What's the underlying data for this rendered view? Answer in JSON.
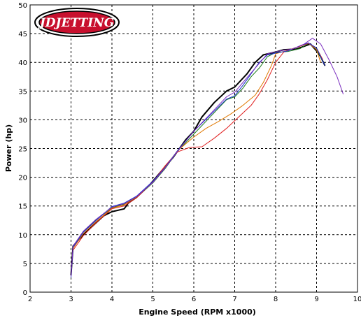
{
  "logo": {
    "text": "JDJETTING"
  },
  "chart_data": {
    "type": "line",
    "title": "",
    "xlabel": "Engine Speed (RPM x1000)",
    "ylabel": "Power (hp)",
    "xlim": [
      2,
      10
    ],
    "ylim": [
      0,
      50
    ],
    "xticks": [
      2,
      3,
      4,
      5,
      6,
      7,
      8,
      9,
      10
    ],
    "yticks": [
      0,
      5,
      10,
      15,
      20,
      25,
      30,
      35,
      40,
      45,
      50
    ],
    "grid": true,
    "legend": "none",
    "series": [
      {
        "color": "#000000",
        "width": 2,
        "points": [
          [
            3.0,
            3.0
          ],
          [
            3.05,
            8
          ],
          [
            3.3,
            10
          ],
          [
            3.6,
            12
          ],
          [
            3.8,
            13.3
          ],
          [
            4.0,
            14
          ],
          [
            4.3,
            14.5
          ],
          [
            4.4,
            15.5
          ],
          [
            4.6,
            16.5
          ],
          [
            4.9,
            18.5
          ],
          [
            5.2,
            21
          ],
          [
            5.5,
            23.5
          ],
          [
            5.8,
            26.5
          ],
          [
            6.0,
            28
          ],
          [
            6.2,
            30.5
          ],
          [
            6.5,
            33
          ],
          [
            6.8,
            35
          ],
          [
            7.0,
            35.7
          ],
          [
            7.3,
            38
          ],
          [
            7.5,
            40
          ],
          [
            7.7,
            41.3
          ],
          [
            8.0,
            41.8
          ],
          [
            8.2,
            42.2
          ],
          [
            8.5,
            42.3
          ],
          [
            8.7,
            42.8
          ],
          [
            8.85,
            43.2
          ],
          [
            9.0,
            42
          ],
          [
            9.1,
            41
          ],
          [
            9.2,
            39.5
          ]
        ]
      },
      {
        "color": "#1a7a1a",
        "width": 1,
        "points": [
          [
            3.05,
            7.8
          ],
          [
            3.3,
            10.5
          ],
          [
            3.6,
            12.5
          ],
          [
            4.0,
            14.7
          ],
          [
            4.3,
            15.3
          ],
          [
            4.6,
            16.5
          ],
          [
            5.0,
            19
          ],
          [
            5.3,
            21.5
          ],
          [
            5.6,
            24.5
          ],
          [
            6.0,
            27.5
          ],
          [
            6.4,
            30.5
          ],
          [
            6.8,
            33.5
          ],
          [
            7.0,
            34
          ],
          [
            7.2,
            35.5
          ],
          [
            7.4,
            37.5
          ],
          [
            7.6,
            39
          ],
          [
            7.8,
            41
          ],
          [
            8.0,
            41.7
          ],
          [
            8.3,
            41.9
          ],
          [
            8.6,
            42.4
          ],
          [
            8.8,
            43.3
          ],
          [
            9.0,
            42.3
          ],
          [
            9.15,
            40.2
          ]
        ]
      },
      {
        "color": "#e07800",
        "width": 1,
        "points": [
          [
            3.05,
            7.6
          ],
          [
            3.3,
            10.2
          ],
          [
            3.6,
            12.2
          ],
          [
            4.0,
            14.6
          ],
          [
            4.3,
            15.2
          ],
          [
            4.6,
            16.6
          ],
          [
            5.0,
            19.3
          ],
          [
            5.3,
            21.8
          ],
          [
            5.6,
            24.6
          ],
          [
            6.0,
            27
          ],
          [
            6.3,
            28.5
          ],
          [
            6.6,
            29.7
          ],
          [
            6.9,
            31
          ],
          [
            7.2,
            32.5
          ],
          [
            7.5,
            34.3
          ],
          [
            7.7,
            36.5
          ],
          [
            7.9,
            39.5
          ],
          [
            8.0,
            41.5
          ],
          [
            8.3,
            42.1
          ],
          [
            8.6,
            42.8
          ],
          [
            8.8,
            43.4
          ],
          [
            9.0,
            42.2
          ],
          [
            9.1,
            40
          ]
        ]
      },
      {
        "color": "#e02020",
        "width": 1,
        "points": [
          [
            3.05,
            7.3
          ],
          [
            3.3,
            9.8
          ],
          [
            3.6,
            12
          ],
          [
            4.0,
            14.5
          ],
          [
            4.3,
            15
          ],
          [
            4.6,
            16.4
          ],
          [
            5.0,
            19.2
          ],
          [
            5.3,
            22
          ],
          [
            5.6,
            24.4
          ],
          [
            5.9,
            25.2
          ],
          [
            6.2,
            25.3
          ],
          [
            6.5,
            26.8
          ],
          [
            6.8,
            28.5
          ],
          [
            7.1,
            30.5
          ],
          [
            7.4,
            32.5
          ],
          [
            7.6,
            34.5
          ],
          [
            7.8,
            37
          ],
          [
            8.0,
            40
          ],
          [
            8.2,
            41.8
          ],
          [
            8.5,
            42.6
          ],
          [
            8.8,
            43.3
          ],
          [
            9.0,
            42.5
          ],
          [
            9.15,
            40.5
          ]
        ]
      },
      {
        "color": "#1a30d0",
        "width": 1,
        "points": [
          [
            3.0,
            2.6
          ],
          [
            3.05,
            7.8
          ],
          [
            3.3,
            10.4
          ],
          [
            3.6,
            12.4
          ],
          [
            4.0,
            14.9
          ],
          [
            4.3,
            15.5
          ],
          [
            4.6,
            16.7
          ],
          [
            5.0,
            19.3
          ],
          [
            5.3,
            21.7
          ],
          [
            5.6,
            24.6
          ],
          [
            6.0,
            28
          ],
          [
            6.4,
            30.8
          ],
          [
            6.8,
            33.6
          ],
          [
            7.0,
            34.2
          ],
          [
            7.2,
            36
          ],
          [
            7.4,
            38
          ],
          [
            7.6,
            40
          ],
          [
            7.8,
            41.3
          ],
          [
            8.0,
            41.6
          ],
          [
            8.3,
            42
          ],
          [
            8.6,
            42.9
          ],
          [
            8.8,
            43.4
          ],
          [
            9.0,
            42.5
          ],
          [
            9.2,
            39.5
          ]
        ]
      },
      {
        "color": "#7b2fbf",
        "width": 1,
        "points": [
          [
            3.0,
            2.8
          ],
          [
            3.05,
            8
          ],
          [
            3.3,
            10.6
          ],
          [
            3.6,
            12.6
          ],
          [
            4.0,
            14.8
          ],
          [
            4.3,
            15.4
          ],
          [
            4.6,
            16.6
          ],
          [
            5.0,
            19.1
          ],
          [
            5.3,
            21.6
          ],
          [
            5.6,
            24.5
          ],
          [
            6.0,
            28
          ],
          [
            6.4,
            31
          ],
          [
            6.8,
            34
          ],
          [
            7.0,
            34.8
          ],
          [
            7.2,
            36.5
          ],
          [
            7.5,
            39
          ],
          [
            7.8,
            41.5
          ],
          [
            8.1,
            42
          ],
          [
            8.4,
            42.3
          ],
          [
            8.7,
            43.2
          ],
          [
            8.9,
            44.2
          ],
          [
            9.1,
            43.2
          ],
          [
            9.3,
            40.5
          ],
          [
            9.5,
            37.5
          ],
          [
            9.65,
            34.5
          ]
        ]
      }
    ]
  }
}
